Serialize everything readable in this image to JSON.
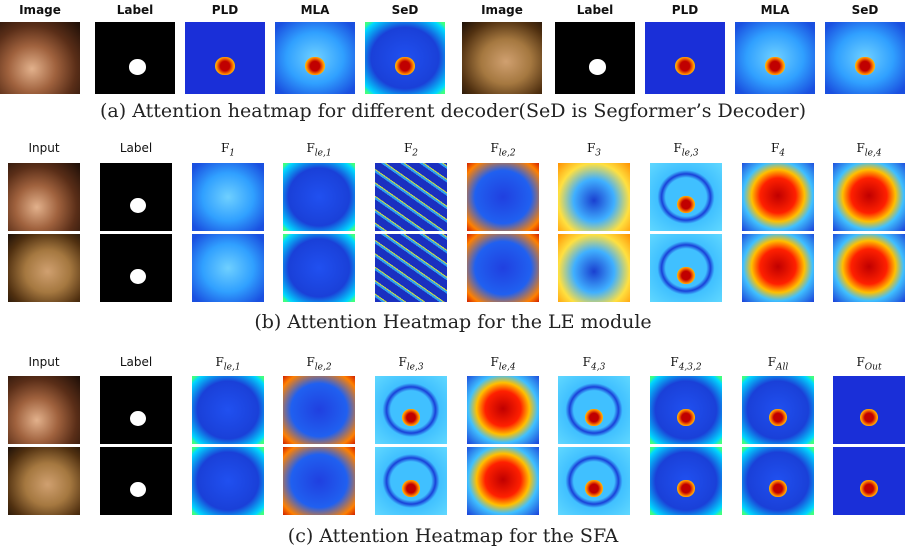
{
  "panel_a": {
    "headers": [
      {
        "text": "Image"
      },
      {
        "text": "Label"
      },
      {
        "text": "PLD"
      },
      {
        "text": "MLA"
      },
      {
        "text": "SeD"
      },
      {
        "text": "Image"
      },
      {
        "text": "Label"
      },
      {
        "text": "PLD"
      },
      {
        "text": "MLA"
      },
      {
        "text": "SeD"
      }
    ],
    "caption": "(a) Attention heatmap for different decoder(SeD is Segformer’s Decoder)"
  },
  "panel_b": {
    "headers": [
      {
        "text": "Input"
      },
      {
        "text": "Label"
      },
      {
        "base": "F",
        "sub": "1"
      },
      {
        "base": "F",
        "sub": "le,1"
      },
      {
        "base": "F",
        "sub": "2"
      },
      {
        "base": "F",
        "sub": "le,2"
      },
      {
        "base": "F",
        "sub": "3"
      },
      {
        "base": "F",
        "sub": "le,3"
      },
      {
        "base": "F",
        "sub": "4"
      },
      {
        "base": "F",
        "sub": "le,4"
      }
    ],
    "caption": "(b) Attention Heatmap for the LE module"
  },
  "panel_c": {
    "headers": [
      {
        "text": "Input"
      },
      {
        "text": "Label"
      },
      {
        "base": "F",
        "sub": "le,1"
      },
      {
        "base": "F",
        "sub": "le,2"
      },
      {
        "base": "F",
        "sub": "le,3"
      },
      {
        "base": "F",
        "sub": "le,4"
      },
      {
        "base": "F",
        "sub": "4,3"
      },
      {
        "base": "F",
        "sub": "4,3,2"
      },
      {
        "base": "F",
        "sub": "All"
      },
      {
        "base": "F",
        "sub": "Out"
      }
    ],
    "caption": "(c) Attention Heatmap for the SFA"
  }
}
